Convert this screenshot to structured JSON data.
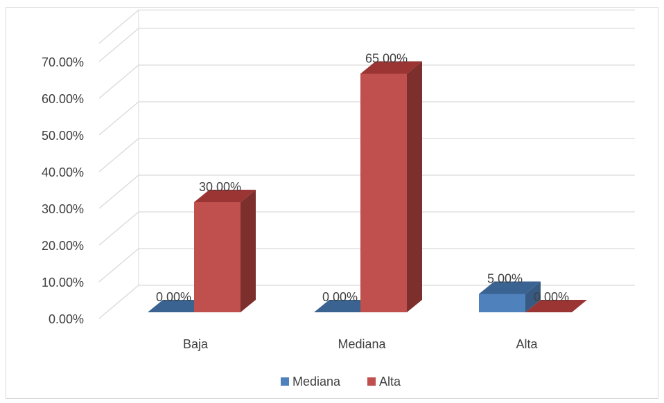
{
  "chart_data": {
    "type": "bar",
    "categories": [
      "Baja",
      "Mediana",
      "Alta"
    ],
    "series": [
      {
        "name": "Mediana",
        "values": [
          0.0,
          0.0,
          5.0
        ],
        "labels": [
          "0.00%",
          "0.00%",
          "5.00%"
        ],
        "color": "#4f81bd",
        "top_color": "#3a6391",
        "side_color": "#375a82"
      },
      {
        "name": "Alta",
        "values": [
          30.0,
          65.0,
          0.0
        ],
        "labels": [
          "30.00%",
          "65.00%",
          "0.00%"
        ],
        "color": "#c0504d",
        "top_color": "#9b3533",
        "side_color": "#7d2f2e"
      }
    ],
    "yticks": [
      "0.00%",
      "10.00%",
      "20.00%",
      "30.00%",
      "40.00%",
      "50.00%",
      "60.00%",
      "70.00%"
    ],
    "ylim": [
      0,
      75
    ],
    "grid": true,
    "legend": "bottom",
    "style": "3d-clustered-column"
  }
}
